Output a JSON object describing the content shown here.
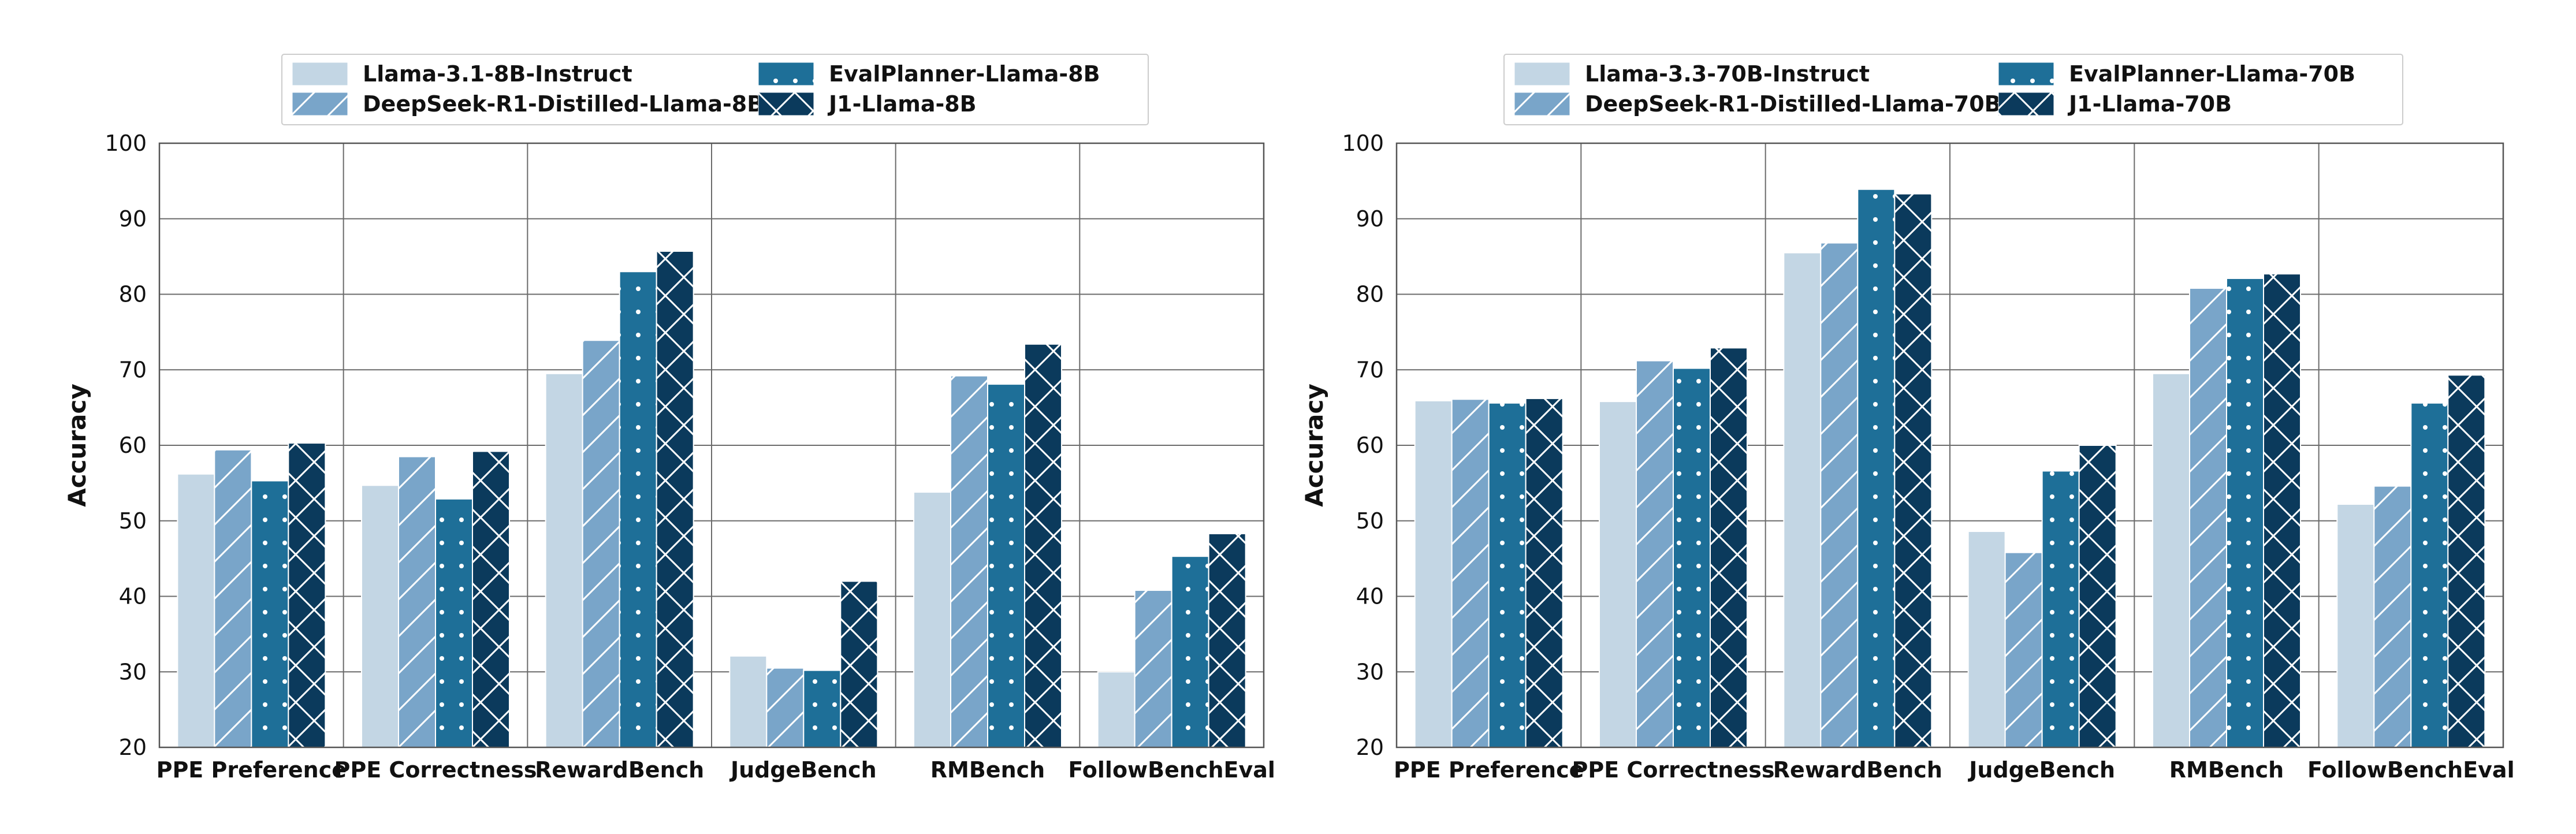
{
  "colors": {
    "c0": "#c3d6e4",
    "c1": "#79a5c9",
    "c2": "#1e6f98",
    "c3": "#0b3a5c"
  },
  "chart_data": [
    {
      "type": "bar",
      "title": "",
      "xlabel": "",
      "ylabel": "Accuracy",
      "ylim": [
        20,
        100
      ],
      "yticks": [
        20,
        30,
        40,
        50,
        60,
        70,
        80,
        90,
        100
      ],
      "grid": true,
      "legend_position": "top-center",
      "categories": [
        "PPE Preference",
        "PPE Correctness",
        "RewardBench",
        "JudgeBench",
        "RMBench",
        "FollowBenchEval"
      ],
      "series": [
        {
          "name": "Llama-3.1-8B-Instruct",
          "color": "#c3d6e4",
          "pattern": "none",
          "values": [
            56.2,
            54.7,
            69.5,
            32.1,
            53.8,
            30.0
          ]
        },
        {
          "name": "DeepSeek-R1-Distilled-Llama-8B",
          "color": "#79a5c9",
          "pattern": "diagonal",
          "values": [
            59.4,
            58.5,
            73.9,
            30.5,
            69.2,
            40.8
          ]
        },
        {
          "name": "EvalPlanner-Llama-8B",
          "color": "#1e6f98",
          "pattern": "dots",
          "values": [
            55.3,
            52.9,
            83.0,
            30.2,
            68.1,
            45.3
          ]
        },
        {
          "name": "J1-Llama-8B",
          "color": "#0b3a5c",
          "pattern": "crosshatch",
          "values": [
            60.3,
            59.2,
            85.7,
            42.0,
            73.4,
            48.3
          ]
        }
      ]
    },
    {
      "type": "bar",
      "title": "",
      "xlabel": "",
      "ylabel": "Accuracy",
      "ylim": [
        20,
        100
      ],
      "yticks": [
        20,
        30,
        40,
        50,
        60,
        70,
        80,
        90,
        100
      ],
      "grid": true,
      "legend_position": "top-center",
      "categories": [
        "PPE Preference",
        "PPE Correctness",
        "RewardBench",
        "JudgeBench",
        "RMBench",
        "FollowBenchEval"
      ],
      "series": [
        {
          "name": "Llama-3.3-70B-Instruct",
          "color": "#c3d6e4",
          "pattern": "none",
          "values": [
            65.9,
            65.8,
            85.5,
            48.6,
            69.5,
            52.2
          ]
        },
        {
          "name": "DeepSeek-R1-Distilled-Llama-70B",
          "color": "#79a5c9",
          "pattern": "diagonal",
          "values": [
            66.1,
            71.2,
            86.8,
            45.8,
            80.8,
            54.6
          ]
        },
        {
          "name": "EvalPlanner-Llama-70B",
          "color": "#1e6f98",
          "pattern": "dots",
          "values": [
            65.6,
            70.2,
            93.9,
            56.6,
            82.1,
            65.6
          ]
        },
        {
          "name": "J1-Llama-70B",
          "color": "#0b3a5c",
          "pattern": "crosshatch",
          "values": [
            66.2,
            72.9,
            93.3,
            60.0,
            82.7,
            69.3
          ]
        }
      ]
    }
  ]
}
